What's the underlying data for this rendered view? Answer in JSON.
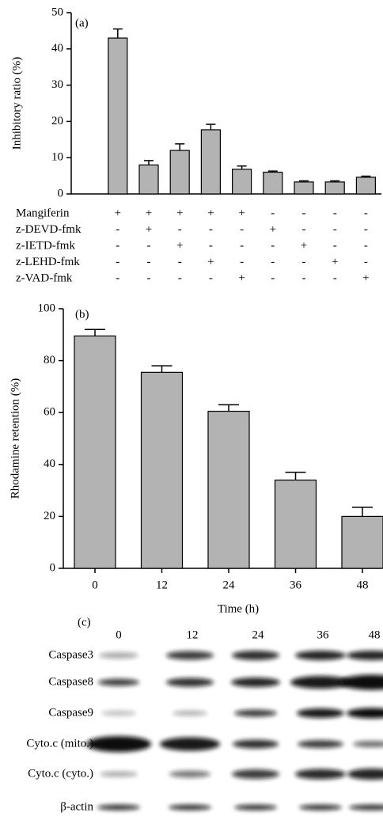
{
  "chart_data": [
    {
      "type": "bar",
      "panel_label": "(a)",
      "y_label": "Inhibitory ratio (%)",
      "values": [
        43,
        8,
        12,
        17.7,
        6.8,
        6,
        3.3,
        3.3,
        4.6
      ],
      "errors": [
        2.5,
        1.2,
        1.8,
        1.5,
        0.9,
        0.3,
        0.3,
        0.3,
        0.3
      ],
      "color": "#b3b3b3",
      "ylim": [
        0,
        50
      ],
      "yticks": [
        0,
        10,
        20,
        30,
        40,
        50
      ],
      "treatments": [
        {
          "name": "Mangiferin",
          "signs": [
            "+",
            "+",
            "+",
            "+",
            "+",
            "-",
            "-",
            "-",
            "-"
          ]
        },
        {
          "name": "z-DEVD-fmk",
          "signs": [
            "-",
            "+",
            "-",
            "-",
            "-",
            "+",
            "-",
            "-",
            "-"
          ]
        },
        {
          "name": "z-IETD-fmk",
          "signs": [
            "-",
            "-",
            "+",
            "-",
            "-",
            "-",
            "+",
            "-",
            "-"
          ]
        },
        {
          "name": "z-LEHD-fmk",
          "signs": [
            "-",
            "-",
            "-",
            "+",
            "-",
            "-",
            "-",
            "+",
            "-"
          ]
        },
        {
          "name": "z-VAD-fmk",
          "signs": [
            "-",
            "-",
            "-",
            "-",
            "+",
            "-",
            "-",
            "-",
            "+"
          ]
        }
      ]
    },
    {
      "type": "bar",
      "panel_label": "(b)",
      "y_label": "Rhodamine retention (%)",
      "x_label": "Time (h)",
      "categories": [
        "0",
        "12",
        "24",
        "36",
        "48"
      ],
      "values": [
        89.5,
        75.5,
        60.5,
        34,
        20
      ],
      "errors": [
        2.5,
        2.5,
        2.5,
        3,
        3.5
      ],
      "color": "#b3b3b3",
      "ylim": [
        0,
        100
      ],
      "yticks": [
        0,
        20,
        40,
        60,
        80,
        100
      ]
    }
  ],
  "blot": {
    "panel_label": "(c)",
    "lanes": [
      "0",
      "12",
      "24",
      "36",
      "48"
    ],
    "rows": [
      "Caspase3",
      "Caspase8",
      "Caspase9",
      "Cyto.c (mito.)",
      "Cyto.c (cyto.)",
      "β-actin"
    ]
  }
}
